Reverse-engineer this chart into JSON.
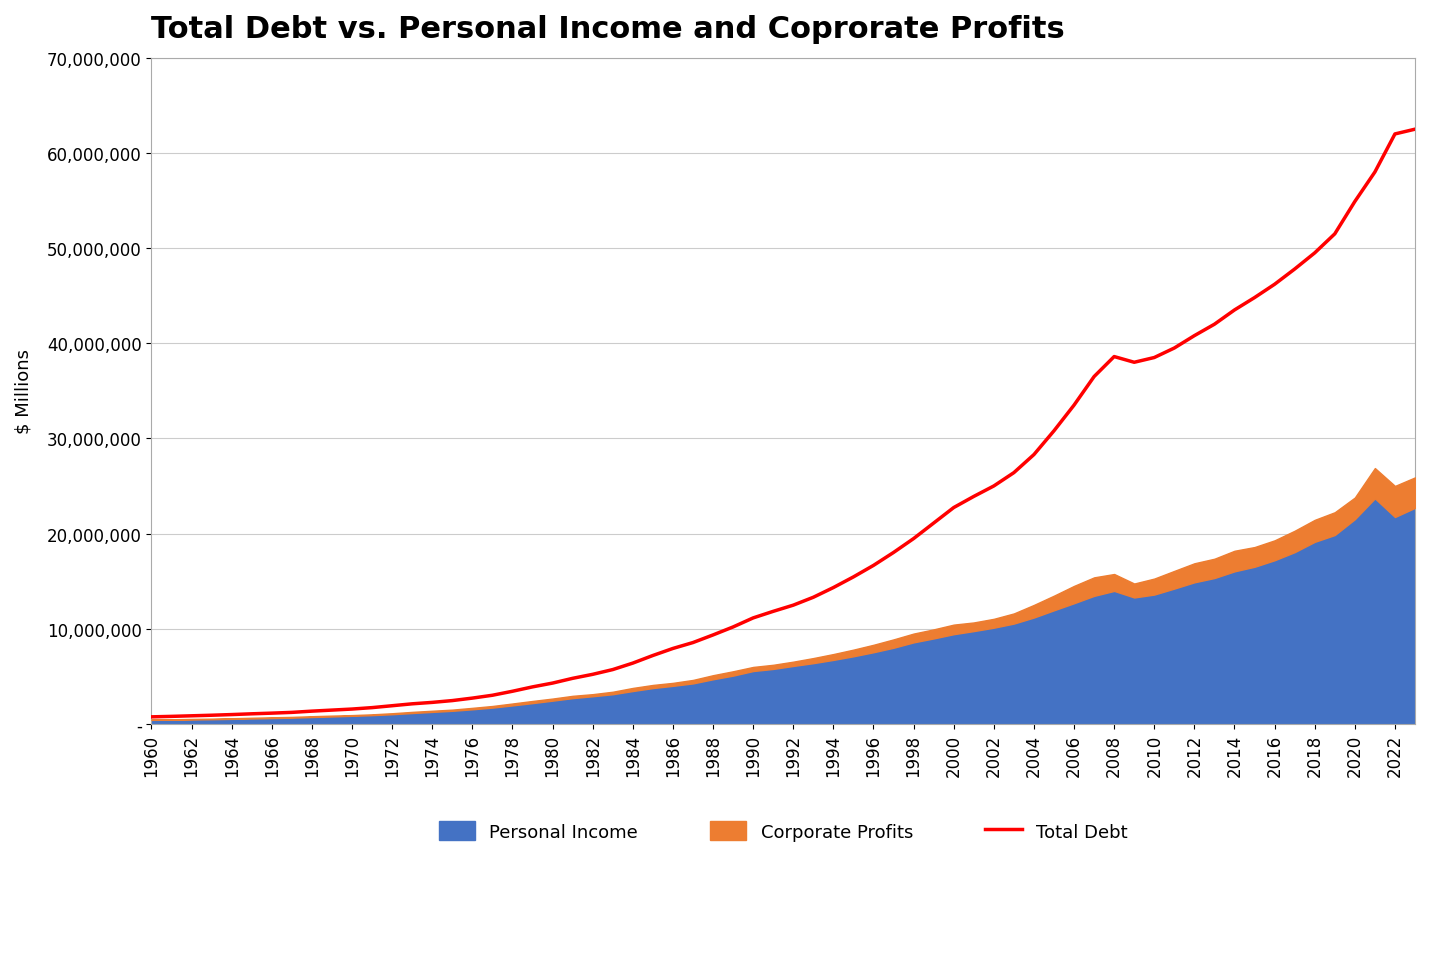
{
  "title": "Total Debt vs. Personal Income and Coprorate Profits",
  "ylabel": "$ Millions",
  "background_color": "#ffffff",
  "personal_income_color": "#4472C4",
  "corporate_profits_color": "#ED7D31",
  "total_debt_color": "#FF0000",
  "years": [
    1960,
    1961,
    1962,
    1963,
    1964,
    1965,
    1966,
    1967,
    1968,
    1969,
    1970,
    1971,
    1972,
    1973,
    1974,
    1975,
    1976,
    1977,
    1978,
    1979,
    1980,
    1981,
    1982,
    1983,
    1984,
    1985,
    1986,
    1987,
    1988,
    1989,
    1990,
    1991,
    1992,
    1993,
    1994,
    1995,
    1996,
    1997,
    1998,
    1999,
    2000,
    2001,
    2002,
    2003,
    2004,
    2005,
    2006,
    2007,
    2008,
    2009,
    2010,
    2011,
    2012,
    2013,
    2014,
    2015,
    2016,
    2017,
    2018,
    2019,
    2020,
    2021,
    2022,
    2023
  ],
  "personal_income": [
    411,
    427,
    456,
    480,
    516,
    559,
    601,
    645,
    710,
    769,
    838,
    907,
    1006,
    1131,
    1249,
    1365,
    1523,
    1700,
    1934,
    2175,
    2432,
    2699,
    2896,
    3109,
    3445,
    3756,
    3989,
    4246,
    4680,
    5064,
    5546,
    5767,
    6080,
    6375,
    6717,
    7096,
    7522,
    7994,
    8559,
    8973,
    9419,
    9745,
    10101,
    10535,
    11173,
    11933,
    12675,
    13448,
    13968,
    13278,
    13584,
    14215,
    14872,
    15323,
    16024,
    16505,
    17192,
    18042,
    19125,
    19843,
    21506,
    23697,
    21736,
    22700
  ],
  "corporate_profits": [
    49,
    50,
    55,
    58,
    66,
    74,
    81,
    79,
    87,
    90,
    75,
    87,
    104,
    121,
    124,
    123,
    153,
    172,
    200,
    226,
    220,
    241,
    219,
    261,
    325,
    328,
    313,
    365,
    428,
    457,
    430,
    435,
    451,
    534,
    613,
    699,
    782,
    878,
    924,
    951,
    1005,
    907,
    933,
    1065,
    1324,
    1537,
    1821,
    1944,
    1776,
    1465,
    1680,
    1857,
    2000,
    2027,
    2163,
    2072,
    2093,
    2250,
    2311,
    2394,
    2276,
    3183,
    3266,
    3200
  ],
  "total_debt": [
    730,
    780,
    840,
    900,
    970,
    1050,
    1120,
    1200,
    1330,
    1440,
    1550,
    1700,
    1900,
    2100,
    2250,
    2440,
    2700,
    3000,
    3420,
    3880,
    4280,
    4780,
    5200,
    5700,
    6380,
    7180,
    7920,
    8540,
    9340,
    10180,
    11130,
    11820,
    12470,
    13300,
    14320,
    15440,
    16650,
    18010,
    19470,
    21100,
    22730,
    23900,
    25000,
    26400,
    28300,
    30800,
    33500,
    36500,
    38600,
    38000,
    38500,
    39500,
    40800,
    42000,
    43500,
    44800,
    46200,
    47800,
    49500,
    51500,
    54900,
    58000,
    62000,
    62500
  ],
  "ylim": [
    0,
    70000
  ],
  "ytick_values": [
    0,
    10000,
    20000,
    30000,
    40000,
    50000,
    60000,
    70000
  ],
  "ytick_labels": [
    "-",
    "10,000,000",
    "20,000,000",
    "30,000,000",
    "40,000,000",
    "50,000,000",
    "60,000,000",
    "70,000,000"
  ],
  "title_fontsize": 22,
  "axis_fontsize": 13,
  "tick_fontsize": 12,
  "legend_fontsize": 13,
  "border_color": "#aaaaaa"
}
